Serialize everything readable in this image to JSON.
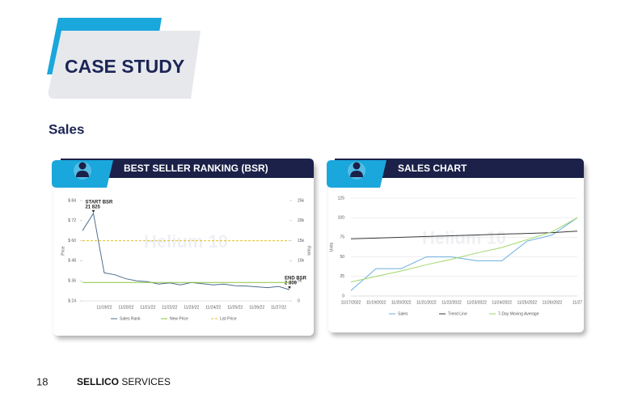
{
  "header": {
    "title": "CASE STUDY"
  },
  "section_title": "Sales",
  "chart_data": [
    {
      "type": "line",
      "title": "BEST SELLER RANKING (BSR)",
      "watermark": "Helium 10",
      "ylabel": "Price",
      "y2label": "Rank",
      "categories": [
        null,
        null,
        "11/19/22",
        null,
        "11/20/22",
        null,
        "11/21/22",
        null,
        "11/22/22",
        null,
        "11/23/22",
        null,
        "11/24/22",
        null,
        "11/25/22",
        null,
        "11/26/22",
        null,
        "11/27/22",
        null
      ],
      "ylim": [
        24,
        84
      ],
      "yticks": [
        {
          "value": 24,
          "label": "$ 24"
        },
        {
          "value": 36,
          "label": "$ 36"
        },
        {
          "value": 48,
          "label": "$ 48"
        },
        {
          "value": 60,
          "label": "$ 60"
        },
        {
          "value": 72,
          "label": "$ 72"
        },
        {
          "value": 84,
          "label": "$ 84"
        }
      ],
      "y2lim": [
        0,
        25000
      ],
      "y2ticks": [
        0,
        {
          "value": 5000,
          "label": "5k"
        },
        {
          "value": 10000,
          "label": "10k"
        },
        {
          "value": 15000,
          "label": "15k"
        },
        {
          "value": 20000,
          "label": "20k"
        },
        {
          "value": 25000,
          "label": "25k"
        }
      ],
      "annotations": [
        "START BSR",
        "END BSR"
      ],
      "series": [
        {
          "name": "Sales Rank",
          "color": "#4f6d8f",
          "axis": "y2",
          "values": [
            17500,
            21825,
            7000,
            6500,
            5500,
            5000,
            4800,
            4200,
            4500,
            4000,
            4600,
            4300,
            4000,
            4200,
            3800,
            3700,
            3500,
            3300,
            3600,
            2809
          ],
          "value_labels": [
            null,
            "21 825",
            null,
            null,
            null,
            null,
            null,
            null,
            null,
            null,
            null,
            null,
            null,
            null,
            null,
            null,
            null,
            null,
            null,
            "2 809"
          ]
        },
        {
          "name": "New Price",
          "color": "#8cc63f",
          "style": "solid",
          "values": [
            35,
            35,
            35,
            35,
            35,
            35,
            35,
            35,
            35,
            35,
            35,
            35,
            35,
            35,
            35,
            35,
            35,
            35,
            35,
            35
          ]
        },
        {
          "name": "List Price",
          "color": "#e0c02a",
          "style": "dashed",
          "values": [
            60,
            60,
            60,
            60,
            60,
            60,
            60,
            60,
            60,
            60,
            60,
            60,
            60,
            60,
            60,
            60,
            60,
            60,
            60,
            60
          ]
        }
      ]
    },
    {
      "type": "line",
      "title": "SALES CHART",
      "watermark": "Helium 10",
      "ylabel": "Units",
      "categories": [
        "11/17/2022",
        "11/19/2022",
        "11/20/2022",
        "11/21/2022",
        "11/22/2022",
        "11/23/2022",
        "11/24/2022",
        "11/25/2022",
        "11/26/2022",
        "11/27"
      ],
      "ylim": [
        0,
        125
      ],
      "yticks": [
        0,
        25,
        50,
        75,
        100,
        125
      ],
      "grid": true,
      "series": [
        {
          "name": "Sales",
          "color": "#6aaee0",
          "style": "solid",
          "values": [
            7,
            35,
            35,
            50,
            50,
            45,
            45,
            70,
            78,
            100
          ]
        },
        {
          "name": "Trend Line",
          "color": "#3a3a3a",
          "style": "solid",
          "values": [
            73,
            74,
            75,
            76,
            77,
            78,
            79,
            80,
            81,
            83
          ]
        },
        {
          "name": "7-Day Moving Average",
          "color": "#9fd86b",
          "style": "solid",
          "values": [
            18,
            25,
            32,
            40,
            47,
            55,
            62,
            72,
            82,
            100
          ]
        }
      ]
    }
  ],
  "footer": {
    "page_number": "18",
    "brand": "SELLICO",
    "brand_suffix": "SERVICES"
  }
}
